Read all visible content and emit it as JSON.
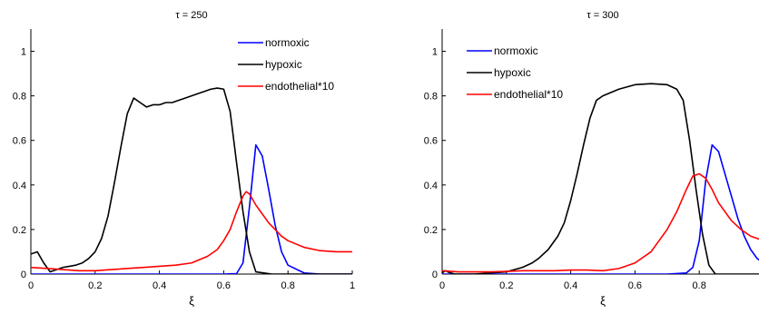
{
  "chart_data": [
    {
      "type": "line",
      "title": "τ = 250",
      "xlabel": "ξ",
      "ylabel": "",
      "xlim": [
        0,
        1
      ],
      "ylim": [
        0,
        1.1
      ],
      "xticks": [
        "0",
        "0.2",
        "0.4",
        "0.6",
        "0.8",
        "1"
      ],
      "yticks": [
        "0",
        "0.2",
        "0.4",
        "0.6",
        "0.8",
        "1"
      ],
      "legend_position": "top-right",
      "grid": false,
      "series": [
        {
          "name": "normoxic",
          "color": "#0000ff",
          "x": [
            0,
            0.1,
            0.2,
            0.3,
            0.4,
            0.5,
            0.6,
            0.64,
            0.66,
            0.68,
            0.7,
            0.72,
            0.74,
            0.76,
            0.78,
            0.8,
            0.85,
            0.9,
            1.0
          ],
          "y": [
            0,
            0,
            0,
            0,
            0,
            0,
            0,
            0.002,
            0.05,
            0.3,
            0.58,
            0.53,
            0.38,
            0.22,
            0.1,
            0.04,
            0.005,
            0,
            0
          ]
        },
        {
          "name": "hypoxic",
          "color": "#000000",
          "x": [
            0,
            0.02,
            0.04,
            0.06,
            0.08,
            0.1,
            0.12,
            0.14,
            0.16,
            0.18,
            0.2,
            0.22,
            0.24,
            0.26,
            0.28,
            0.3,
            0.32,
            0.34,
            0.36,
            0.38,
            0.4,
            0.42,
            0.44,
            0.46,
            0.48,
            0.5,
            0.52,
            0.54,
            0.56,
            0.58,
            0.6,
            0.62,
            0.64,
            0.66,
            0.68,
            0.7,
            0.75,
            0.8,
            0.9,
            1.0
          ],
          "y": [
            0.09,
            0.1,
            0.05,
            0.01,
            0.02,
            0.03,
            0.035,
            0.04,
            0.05,
            0.07,
            0.1,
            0.16,
            0.26,
            0.41,
            0.57,
            0.72,
            0.79,
            0.77,
            0.75,
            0.76,
            0.76,
            0.77,
            0.77,
            0.78,
            0.79,
            0.8,
            0.81,
            0.82,
            0.83,
            0.835,
            0.83,
            0.73,
            0.5,
            0.28,
            0.1,
            0.01,
            0,
            0,
            0,
            0
          ]
        },
        {
          "name": "endothelial*10",
          "color": "#ff0000",
          "x": [
            0,
            0.05,
            0.1,
            0.15,
            0.2,
            0.25,
            0.3,
            0.35,
            0.4,
            0.45,
            0.5,
            0.55,
            0.58,
            0.6,
            0.62,
            0.64,
            0.66,
            0.67,
            0.68,
            0.7,
            0.72,
            0.74,
            0.76,
            0.78,
            0.8,
            0.85,
            0.9,
            0.95,
            1.0
          ],
          "y": [
            0.03,
            0.025,
            0.02,
            0.015,
            0.015,
            0.02,
            0.025,
            0.03,
            0.035,
            0.04,
            0.05,
            0.08,
            0.11,
            0.15,
            0.2,
            0.28,
            0.35,
            0.37,
            0.36,
            0.31,
            0.27,
            0.23,
            0.2,
            0.17,
            0.15,
            0.12,
            0.105,
            0.1,
            0.1
          ]
        }
      ]
    },
    {
      "type": "line",
      "title": "τ = 300",
      "xlabel": "ξ",
      "ylabel": "",
      "xlim": [
        0,
        1
      ],
      "ylim": [
        0,
        1.1
      ],
      "xticks": [
        "0",
        "0.2",
        "0.4",
        "0.6",
        "0.8"
      ],
      "yticks": [
        "0",
        "0.2",
        "0.4",
        "0.6",
        "0.8",
        "1"
      ],
      "legend_position": "top-left",
      "grid": false,
      "series": [
        {
          "name": "normoxic",
          "color": "#0000ff",
          "x": [
            0,
            0.2,
            0.4,
            0.6,
            0.7,
            0.76,
            0.78,
            0.8,
            0.82,
            0.84,
            0.86,
            0.88,
            0.9,
            0.92,
            0.94,
            0.96,
            0.98,
            1.0
          ],
          "y": [
            0,
            0,
            0,
            0,
            0,
            0.005,
            0.03,
            0.15,
            0.42,
            0.58,
            0.55,
            0.45,
            0.35,
            0.25,
            0.17,
            0.11,
            0.07,
            0.05
          ]
        },
        {
          "name": "hypoxic",
          "color": "#000000",
          "x": [
            0,
            0.01,
            0.02,
            0.04,
            0.06,
            0.1,
            0.15,
            0.2,
            0.25,
            0.28,
            0.3,
            0.33,
            0.36,
            0.38,
            0.4,
            0.42,
            0.44,
            0.46,
            0.48,
            0.5,
            0.55,
            0.6,
            0.65,
            0.7,
            0.73,
            0.75,
            0.77,
            0.79,
            0.81,
            0.83,
            0.85,
            0.9,
            1.0
          ],
          "y": [
            0.005,
            0.015,
            0.008,
            0,
            0,
            0,
            0.005,
            0.01,
            0.03,
            0.05,
            0.07,
            0.11,
            0.17,
            0.23,
            0.33,
            0.45,
            0.58,
            0.7,
            0.78,
            0.8,
            0.83,
            0.85,
            0.855,
            0.85,
            0.83,
            0.78,
            0.6,
            0.38,
            0.18,
            0.04,
            0,
            0,
            0
          ]
        },
        {
          "name": "endothelial*10",
          "color": "#ff0000",
          "x": [
            0,
            0.05,
            0.1,
            0.15,
            0.2,
            0.25,
            0.3,
            0.35,
            0.4,
            0.45,
            0.5,
            0.55,
            0.6,
            0.65,
            0.7,
            0.73,
            0.76,
            0.78,
            0.8,
            0.82,
            0.84,
            0.86,
            0.88,
            0.9,
            0.93,
            0.96,
            1.0
          ],
          "y": [
            0.015,
            0.01,
            0.01,
            0.01,
            0.012,
            0.015,
            0.015,
            0.015,
            0.018,
            0.018,
            0.015,
            0.025,
            0.05,
            0.1,
            0.2,
            0.28,
            0.38,
            0.44,
            0.45,
            0.43,
            0.38,
            0.32,
            0.28,
            0.24,
            0.2,
            0.17,
            0.15
          ]
        }
      ]
    }
  ]
}
